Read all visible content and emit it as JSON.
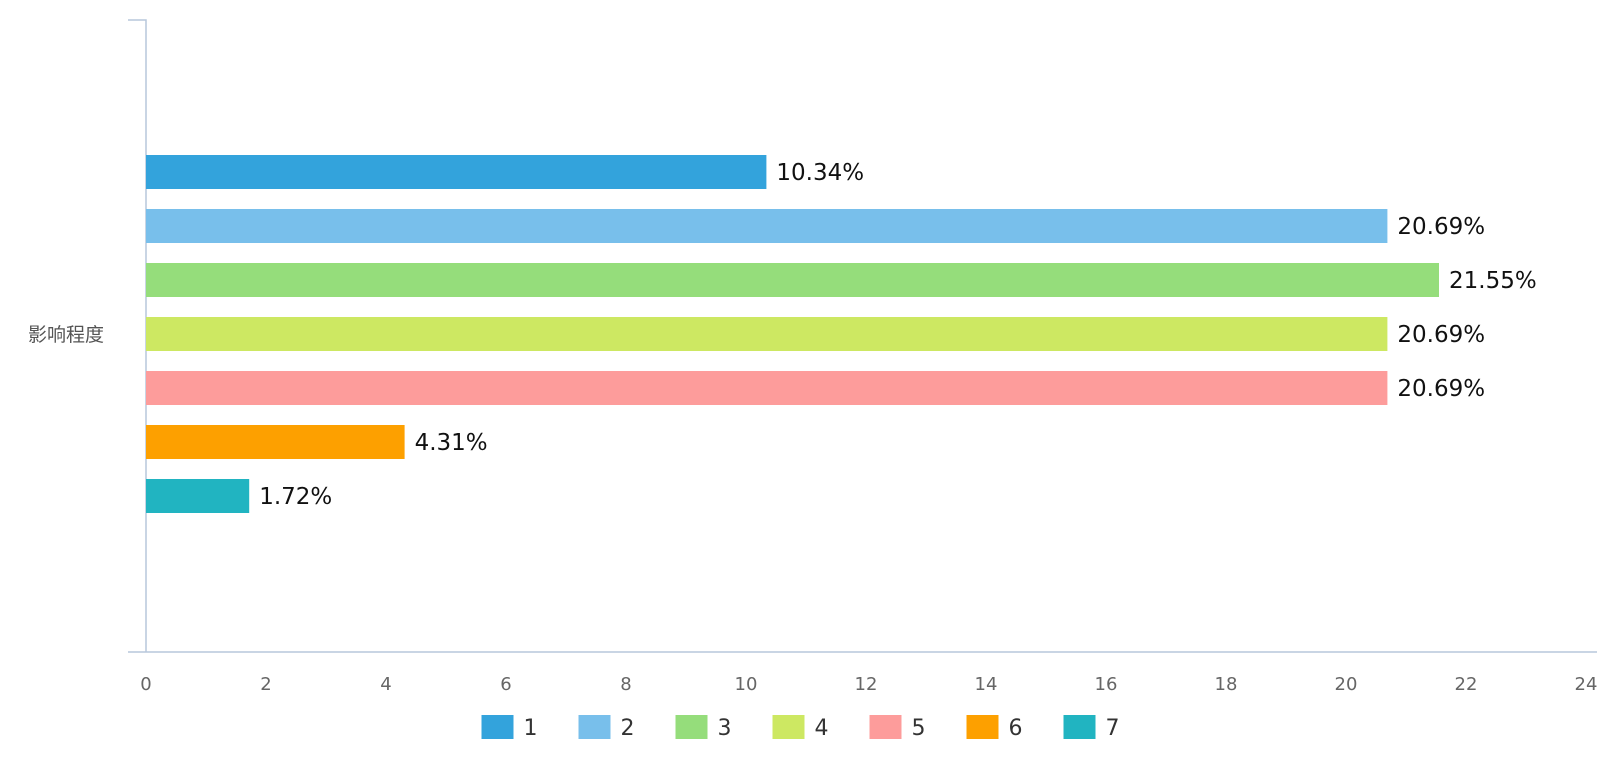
{
  "chart_data": {
    "type": "bar",
    "orientation": "horizontal",
    "categories": [
      "影响程度"
    ],
    "series": [
      {
        "name": "1",
        "color": "#33a3dc",
        "values": [
          10.34
        ],
        "label": "10.34%"
      },
      {
        "name": "2",
        "color": "#78bfeb",
        "values": [
          20.69
        ],
        "label": "20.69%"
      },
      {
        "name": "3",
        "color": "#95dd7b",
        "values": [
          21.55
        ],
        "label": "21.55%"
      },
      {
        "name": "4",
        "color": "#cde862",
        "values": [
          20.69
        ],
        "label": "20.69%"
      },
      {
        "name": "5",
        "color": "#fd9c9b",
        "values": [
          20.69
        ],
        "label": "20.69%"
      },
      {
        "name": "6",
        "color": "#fda000",
        "values": [
          4.31
        ],
        "label": "4.31%"
      },
      {
        "name": "7",
        "color": "#21b4c1",
        "values": [
          1.72
        ],
        "label": "1.72%"
      }
    ],
    "xlim": [
      0,
      24
    ],
    "xticks": [
      "0",
      "2",
      "4",
      "6",
      "8",
      "10",
      "12",
      "14",
      "16",
      "18",
      "20",
      "22",
      "24"
    ],
    "grid": false,
    "legend_position": "bottom-center"
  }
}
